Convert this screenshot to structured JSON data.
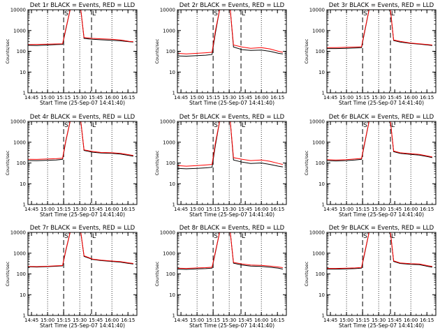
{
  "chart_data": {
    "type": "line",
    "layout": "3x3 grid",
    "x_tick_labels": [
      "14:45",
      "15:00",
      "15:15",
      "15:30",
      "15:45",
      "16:00",
      "16:15"
    ],
    "x_range": [
      "14:41:40",
      "16:23:20"
    ],
    "xlabel": "Start Time (25-Sep-07 14:41:40)",
    "ylabel": "Counts/sec",
    "y_scale": "log",
    "ylim": [
      1,
      10000
    ],
    "y_tick_labels": [
      "1",
      "10",
      "100",
      "1000",
      "10000"
    ],
    "grid": "dotted vertical lines at 15:00, 15:30 and 16:00",
    "dashed_markers": [
      "15:15",
      "15:41"
    ],
    "marker_labels": [
      "S",
      "L"
    ],
    "series_colors": {
      "events": "#000000",
      "lld": "#ff0000"
    },
    "panels": [
      {
        "title": "Det 1r BLACK = Events, RED = LLD",
        "series": [
          {
            "x": [
              "14:42",
              "14:50",
              "15:00",
              "15:08",
              "15:14",
              "15:17",
              "15:21",
              "15:31",
              "15:34",
              "15:42",
              "15:50",
              "16:00",
              "16:08",
              "16:16",
              "16:20"
            ],
            "y": [
              195,
              190,
              200,
              210,
              215,
              1100,
              10000,
              10000,
              420,
              380,
              360,
              340,
              320,
              290,
              280
            ]
          },
          {
            "x": [
              "14:42",
              "14:50",
              "15:00",
              "15:08",
              "15:14",
              "15:17",
              "15:21",
              "15:31",
              "15:34",
              "15:42",
              "15:50",
              "16:00",
              "16:08",
              "16:16",
              "16:20"
            ],
            "y": [
              210,
              215,
              220,
              225,
              230,
              1200,
              10000,
              10000,
              460,
              420,
              400,
              380,
              350,
              300,
              290
            ]
          }
        ]
      },
      {
        "title": "Det 2r BLACK = Events, RED = LLD",
        "series": [
          {
            "x": [
              "14:42",
              "14:50",
              "15:00",
              "15:08",
              "15:14",
              "15:17",
              "15:21",
              "15:31",
              "15:34",
              "15:42",
              "15:50",
              "16:00",
              "16:08",
              "16:16",
              "16:20"
            ],
            "y": [
              60,
              58,
              62,
              65,
              70,
              700,
              10000,
              10000,
              160,
              120,
              110,
              115,
              100,
              80,
              75
            ]
          },
          {
            "x": [
              "14:42",
              "14:50",
              "15:00",
              "15:08",
              "15:14",
              "15:17",
              "15:21",
              "15:31",
              "15:34",
              "15:42",
              "15:50",
              "16:00",
              "16:08",
              "16:16",
              "16:20"
            ],
            "y": [
              80,
              75,
              80,
              85,
              90,
              900,
              10000,
              10000,
              200,
              160,
              140,
              150,
              130,
              100,
              90
            ]
          }
        ]
      },
      {
        "title": "Det 3r BLACK = Events, RED = LLD",
        "series": [
          {
            "x": [
              "14:42",
              "14:50",
              "15:00",
              "15:08",
              "15:14",
              "15:17",
              "15:21",
              "15:31",
              "15:41",
              "15:44",
              "15:50",
              "16:00",
              "16:08",
              "16:16",
              "16:20"
            ],
            "y": [
              135,
              135,
              140,
              145,
              150,
              900,
              10000,
              10000,
              10000,
              330,
              280,
              240,
              220,
              200,
              190
            ]
          },
          {
            "x": [
              "14:42",
              "14:50",
              "15:00",
              "15:08",
              "15:14",
              "15:17",
              "15:21",
              "15:31",
              "15:41",
              "15:44",
              "15:50",
              "16:00",
              "16:08",
              "16:16",
              "16:20"
            ],
            "y": [
              150,
              150,
              155,
              160,
              165,
              1000,
              10000,
              10000,
              10000,
              350,
              300,
              250,
              230,
              210,
              200
            ]
          }
        ]
      },
      {
        "title": "Det 4r BLACK = Events, RED = LLD",
        "series": [
          {
            "x": [
              "14:42",
              "14:50",
              "15:00",
              "15:08",
              "15:14",
              "15:17",
              "15:21",
              "15:31",
              "15:34",
              "15:42",
              "15:50",
              "16:00",
              "16:08",
              "16:16",
              "16:20"
            ],
            "y": [
              130,
              128,
              135,
              140,
              150,
              1100,
              10000,
              10000,
              400,
              330,
              300,
              290,
              270,
              230,
              210
            ]
          },
          {
            "x": [
              "14:42",
              "14:50",
              "15:00",
              "15:08",
              "15:14",
              "15:17",
              "15:21",
              "15:31",
              "15:34",
              "15:42",
              "15:50",
              "16:00",
              "16:08",
              "16:16",
              "16:20"
            ],
            "y": [
              150,
              148,
              155,
              160,
              170,
              1200,
              10000,
              10000,
              430,
              360,
              320,
              310,
              290,
              250,
              230
            ]
          }
        ]
      },
      {
        "title": "Det 5r BLACK = Events, RED = LLD",
        "series": [
          {
            "x": [
              "14:42",
              "14:50",
              "15:00",
              "15:08",
              "15:14",
              "15:17",
              "15:21",
              "15:31",
              "15:34",
              "15:42",
              "15:50",
              "16:00",
              "16:08",
              "16:16",
              "16:20"
            ],
            "y": [
              55,
              52,
              55,
              58,
              62,
              650,
              10000,
              10000,
              140,
              110,
              95,
              100,
              85,
              70,
              65
            ]
          },
          {
            "x": [
              "14:42",
              "14:50",
              "15:00",
              "15:08",
              "15:14",
              "15:17",
              "15:21",
              "15:31",
              "15:34",
              "15:42",
              "15:50",
              "16:00",
              "16:08",
              "16:16",
              "16:20"
            ],
            "y": [
              75,
              70,
              75,
              80,
              85,
              850,
              10000,
              10000,
              180,
              150,
              130,
              140,
              120,
              95,
              85
            ]
          }
        ]
      },
      {
        "title": "Det 6r BLACK = Events, RED = LLD",
        "series": [
          {
            "x": [
              "14:42",
              "14:50",
              "15:00",
              "15:08",
              "15:14",
              "15:17",
              "15:21",
              "15:31",
              "15:41",
              "15:44",
              "15:50",
              "16:00",
              "16:08",
              "16:16",
              "16:20"
            ],
            "y": [
              130,
              125,
              130,
              140,
              150,
              900,
              10000,
              10000,
              10000,
              350,
              290,
              260,
              240,
              200,
              180
            ]
          },
          {
            "x": [
              "14:42",
              "14:50",
              "15:00",
              "15:08",
              "15:14",
              "15:17",
              "15:21",
              "15:31",
              "15:41",
              "15:44",
              "15:50",
              "16:00",
              "16:08",
              "16:16",
              "16:20"
            ],
            "y": [
              145,
              140,
              145,
              155,
              165,
              1000,
              10000,
              10000,
              10000,
              380,
              310,
              280,
              260,
              215,
              195
            ]
          }
        ]
      },
      {
        "title": "Det 7r BLACK = Events, RED = LLD",
        "series": [
          {
            "x": [
              "14:42",
              "14:50",
              "15:00",
              "15:08",
              "15:14",
              "15:17",
              "15:21",
              "15:31",
              "15:34",
              "15:42",
              "15:50",
              "16:00",
              "16:08",
              "16:16",
              "16:20"
            ],
            "y": [
              220,
              215,
              225,
              235,
              245,
              1300,
              10000,
              10000,
              700,
              500,
              440,
              400,
              370,
              320,
              300
            ]
          },
          {
            "x": [
              "14:42",
              "14:50",
              "15:00",
              "15:08",
              "15:14",
              "15:17",
              "15:21",
              "15:31",
              "15:34",
              "15:42",
              "15:50",
              "16:00",
              "16:08",
              "16:16",
              "16:20"
            ],
            "y": [
              230,
              225,
              235,
              245,
              255,
              1400,
              10000,
              10000,
              750,
              520,
              460,
              420,
              390,
              340,
              320
            ]
          }
        ]
      },
      {
        "title": "Det 8r BLACK = Events, RED = LLD",
        "series": [
          {
            "x": [
              "14:42",
              "14:50",
              "15:00",
              "15:08",
              "15:14",
              "15:17",
              "15:21",
              "15:31",
              "15:34",
              "15:42",
              "15:50",
              "16:00",
              "16:08",
              "16:16",
              "16:20"
            ],
            "y": [
              170,
              165,
              175,
              180,
              190,
              1000,
              10000,
              10000,
              330,
              270,
              240,
              230,
              210,
              190,
              170
            ]
          },
          {
            "x": [
              "14:42",
              "14:50",
              "15:00",
              "15:08",
              "15:14",
              "15:17",
              "15:21",
              "15:31",
              "15:34",
              "15:42",
              "15:50",
              "16:00",
              "16:08",
              "16:16",
              "16:20"
            ],
            "y": [
              190,
              185,
              195,
              200,
              210,
              1100,
              10000,
              10000,
              360,
              300,
              270,
              260,
              240,
              215,
              200
            ]
          }
        ]
      },
      {
        "title": "Det 9r BLACK = Events, RED = LLD",
        "series": [
          {
            "x": [
              "14:42",
              "14:50",
              "15:00",
              "15:08",
              "15:14",
              "15:17",
              "15:21",
              "15:31",
              "15:41",
              "15:44",
              "15:50",
              "16:00",
              "16:08",
              "16:16",
              "16:20"
            ],
            "y": [
              170,
              170,
              175,
              180,
              190,
              1000,
              10000,
              10000,
              10000,
              400,
              320,
              290,
              280,
              230,
              210
            ]
          },
          {
            "x": [
              "14:42",
              "14:50",
              "15:00",
              "15:08",
              "15:14",
              "15:17",
              "15:21",
              "15:31",
              "15:41",
              "15:44",
              "15:50",
              "16:00",
              "16:08",
              "16:16",
              "16:20"
            ],
            "y": [
              185,
              185,
              190,
              195,
              205,
              1100,
              10000,
              10000,
              10000,
              430,
              340,
              310,
              300,
              250,
              230
            ]
          }
        ]
      }
    ]
  }
}
